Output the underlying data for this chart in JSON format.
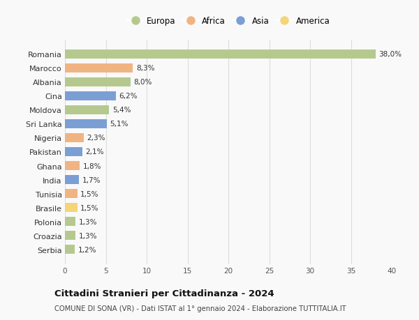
{
  "countries": [
    "Romania",
    "Marocco",
    "Albania",
    "Cina",
    "Moldova",
    "Sri Lanka",
    "Nigeria",
    "Pakistan",
    "Ghana",
    "India",
    "Tunisia",
    "Brasile",
    "Polonia",
    "Croazia",
    "Serbia"
  ],
  "values": [
    38.0,
    8.3,
    8.0,
    6.2,
    5.4,
    5.1,
    2.3,
    2.1,
    1.8,
    1.7,
    1.5,
    1.5,
    1.3,
    1.3,
    1.2
  ],
  "labels": [
    "38,0%",
    "8,3%",
    "8,0%",
    "6,2%",
    "5,4%",
    "5,1%",
    "2,3%",
    "2,1%",
    "1,8%",
    "1,7%",
    "1,5%",
    "1,5%",
    "1,3%",
    "1,3%",
    "1,2%"
  ],
  "continents": [
    "Europa",
    "Africa",
    "Europa",
    "Asia",
    "Europa",
    "Asia",
    "Africa",
    "Asia",
    "Africa",
    "Asia",
    "Africa",
    "America",
    "Europa",
    "Europa",
    "Europa"
  ],
  "continent_colors": {
    "Europa": "#b5c98e",
    "Africa": "#f0b482",
    "Asia": "#7b9fd4",
    "America": "#f5d57a"
  },
  "legend_order": [
    "Europa",
    "Africa",
    "Asia",
    "America"
  ],
  "title": "Cittadini Stranieri per Cittadinanza - 2024",
  "subtitle": "COMUNE DI SONA (VR) - Dati ISTAT al 1° gennaio 2024 - Elaborazione TUTTITALIA.IT",
  "xlim": [
    0,
    40
  ],
  "xticks": [
    0,
    5,
    10,
    15,
    20,
    25,
    30,
    35,
    40
  ],
  "background_color": "#f9f9f9",
  "grid_color": "#dddddd"
}
